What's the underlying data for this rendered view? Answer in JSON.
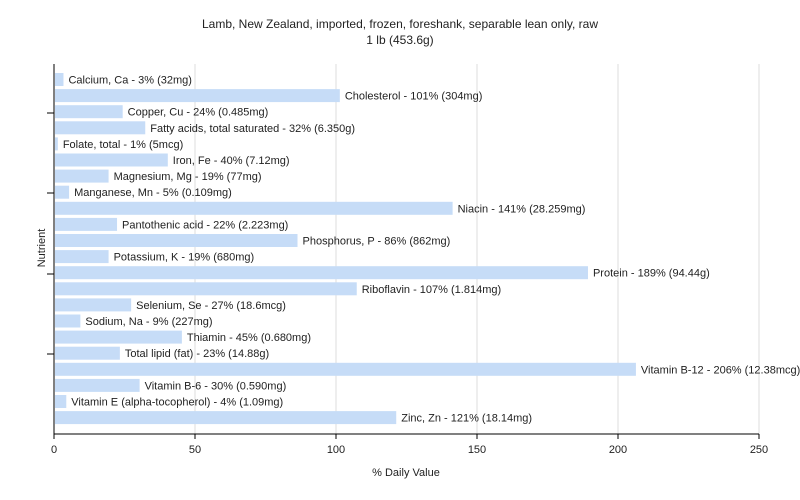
{
  "colors": {
    "bar": "#c6dcf7",
    "grid": "#dddddd",
    "axis": "#000000",
    "text": "#222222"
  },
  "chart_data": {
    "type": "bar",
    "orientation": "horizontal",
    "title": "Lamb, New Zealand, imported, frozen, foreshank, separable lean only, raw",
    "subtitle": "1 lb (453.6g)",
    "xlabel": "% Daily Value",
    "ylabel": "Nutrient",
    "xlim": [
      0,
      250
    ],
    "xticks": [
      0,
      50,
      100,
      150,
      200,
      250
    ],
    "grid": true,
    "categories": [
      "Calcium, Ca",
      "Cholesterol",
      "Copper, Cu",
      "Fatty acids, total saturated",
      "Folate, total",
      "Iron, Fe",
      "Magnesium, Mg",
      "Manganese, Mn",
      "Niacin",
      "Pantothenic acid",
      "Phosphorus, P",
      "Potassium, K",
      "Protein",
      "Riboflavin",
      "Selenium, Se",
      "Sodium, Na",
      "Thiamin",
      "Total lipid (fat)",
      "Vitamin B-12",
      "Vitamin B-6",
      "Vitamin E (alpha-tocopherol)",
      "Zinc, Zn"
    ],
    "values": [
      3,
      101,
      24,
      32,
      1,
      40,
      19,
      5,
      141,
      22,
      86,
      19,
      189,
      107,
      27,
      9,
      45,
      23,
      206,
      30,
      4,
      121
    ],
    "labels": [
      "Calcium, Ca - 3% (32mg)",
      "Cholesterol - 101% (304mg)",
      "Copper, Cu - 24% (0.485mg)",
      "Fatty acids, total saturated - 32% (6.350g)",
      "Folate, total - 1% (5mcg)",
      "Iron, Fe - 40% (7.12mg)",
      "Magnesium, Mg - 19% (77mg)",
      "Manganese, Mn - 5% (0.109mg)",
      "Niacin - 141% (28.259mg)",
      "Pantothenic acid - 22% (2.223mg)",
      "Phosphorus, P - 86% (862mg)",
      "Potassium, K - 19% (680mg)",
      "Protein - 189% (94.44g)",
      "Riboflavin - 107% (1.814mg)",
      "Selenium, Se - 27% (18.6mcg)",
      "Sodium, Na - 9% (227mg)",
      "Thiamin - 45% (0.680mg)",
      "Total lipid (fat) - 23% (14.88g)",
      "Vitamin B-12 - 206% (12.38mcg)",
      "Vitamin B-6 - 30% (0.590mg)",
      "Vitamin E (alpha-tocopherol) - 4% (1.09mg)",
      "Zinc, Zn - 121% (18.14mg)"
    ]
  }
}
